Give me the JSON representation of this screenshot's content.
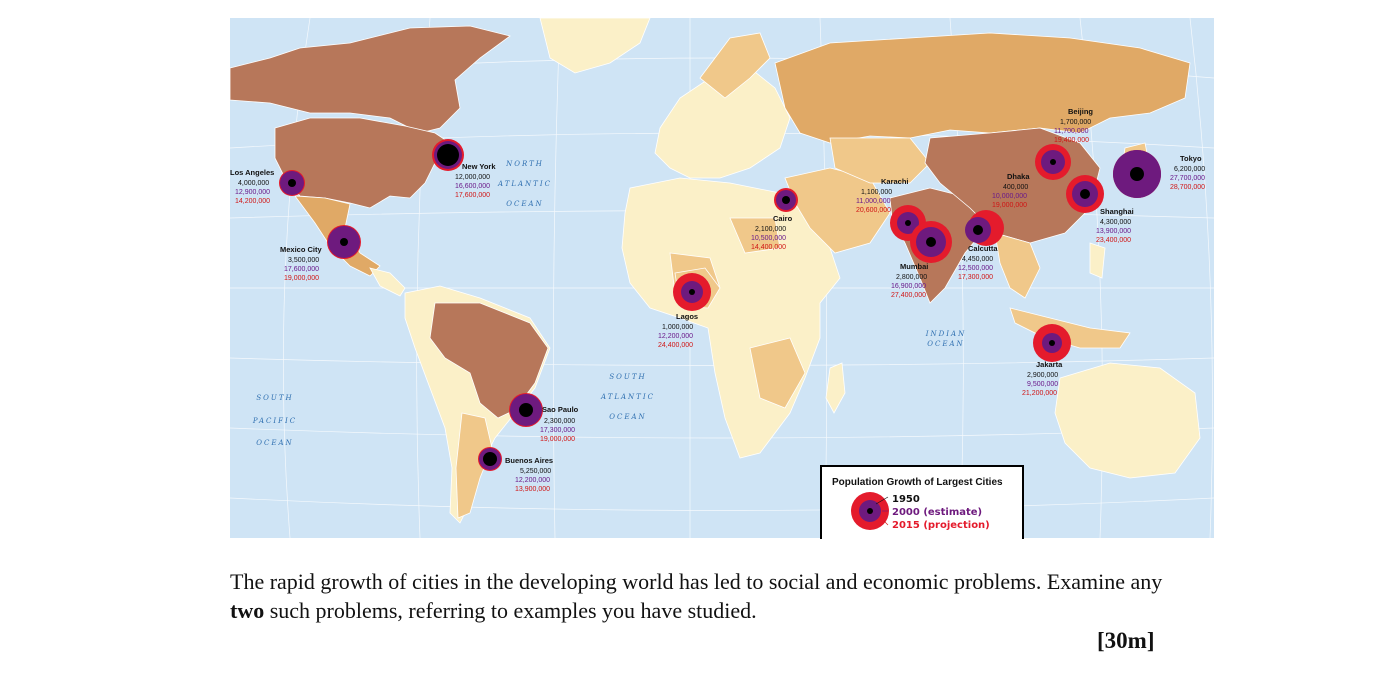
{
  "legend": {
    "title": "Population Growth of Largest Cities",
    "label_1950": "1950",
    "label_2000": "2000 (estimate)",
    "label_2015": "2015 (projection)"
  },
  "oceans": {
    "north_atlantic": [
      "NORTH",
      "ATLANTIC",
      "OCEAN"
    ],
    "south_atlantic": [
      "SOUTH",
      "ATLANTIC",
      "OCEAN"
    ],
    "south_pacific": [
      "SOUTH",
      "PACIFIC",
      "OCEAN"
    ],
    "indian": [
      "INDIAN",
      "OCEAN"
    ]
  },
  "cities": [
    {
      "name": "Los Angeles",
      "p1950": "4,000,000",
      "p2000": "12,900,000",
      "p2015": "14,200,000"
    },
    {
      "name": "New York",
      "p1950": "12,000,000",
      "p2000": "16,600,000",
      "p2015": "17,600,000"
    },
    {
      "name": "Mexico City",
      "p1950": "3,500,000",
      "p2000": "17,600,000",
      "p2015": "19,000,000"
    },
    {
      "name": "Sao Paulo",
      "p1950": "2,300,000",
      "p2000": "17,300,000",
      "p2015": "19,000,000"
    },
    {
      "name": "Buenos Aires",
      "p1950": "5,250,000",
      "p2000": "12,200,000",
      "p2015": "13,900,000"
    },
    {
      "name": "Cairo",
      "p1950": "2,100,000",
      "p2000": "10,500,000",
      "p2015": "14,400,000"
    },
    {
      "name": "Lagos",
      "p1950": "1,000,000",
      "p2000": "12,200,000",
      "p2015": "24,400,000"
    },
    {
      "name": "Karachi",
      "p1950": "1,100,000",
      "p2000": "11,000,000",
      "p2015": "20,600,000"
    },
    {
      "name": "Mumbai",
      "p1950": "2,800,000",
      "p2000": "16,900,000",
      "p2015": "27,400,000"
    },
    {
      "name": "Calcutta",
      "p1950": "4,450,000",
      "p2000": "12,500,000",
      "p2015": "17,300,000"
    },
    {
      "name": "Dhaka",
      "p1950": "400,000",
      "p2000": "10,000,000",
      "p2015": "19,000,000"
    },
    {
      "name": "Beijing",
      "p1950": "1,700,000",
      "p2000": "11,700,000",
      "p2015": "19,400,000"
    },
    {
      "name": "Shanghai",
      "p1950": "4,300,000",
      "p2000": "13,900,000",
      "p2015": "23,400,000"
    },
    {
      "name": "Tokyo",
      "p1950": "6,200,000",
      "p2000": "27,700,000",
      "p2015": "28,700,000"
    },
    {
      "name": "Jakarta",
      "p1950": "2,900,000",
      "p2000": "9,500,000",
      "p2015": "21,200,000"
    }
  ],
  "question": {
    "part1": "The rapid growth of cities in the developing world has led to social and economic problems. Examine any ",
    "bold": "two",
    "part2": " such problems, referring to examples you have studied.",
    "marks": "[30m]"
  },
  "colors": {
    "ocean": "#cfe4f5",
    "land_light": "#fbf0c8",
    "land_mid": "#f0c88a",
    "land_dark": "#e0a966",
    "land_brown": "#b7775a",
    "ring_2015": "#e41b2c",
    "ring_2000": "#6e1a7e",
    "dot_1950": "#000000"
  }
}
